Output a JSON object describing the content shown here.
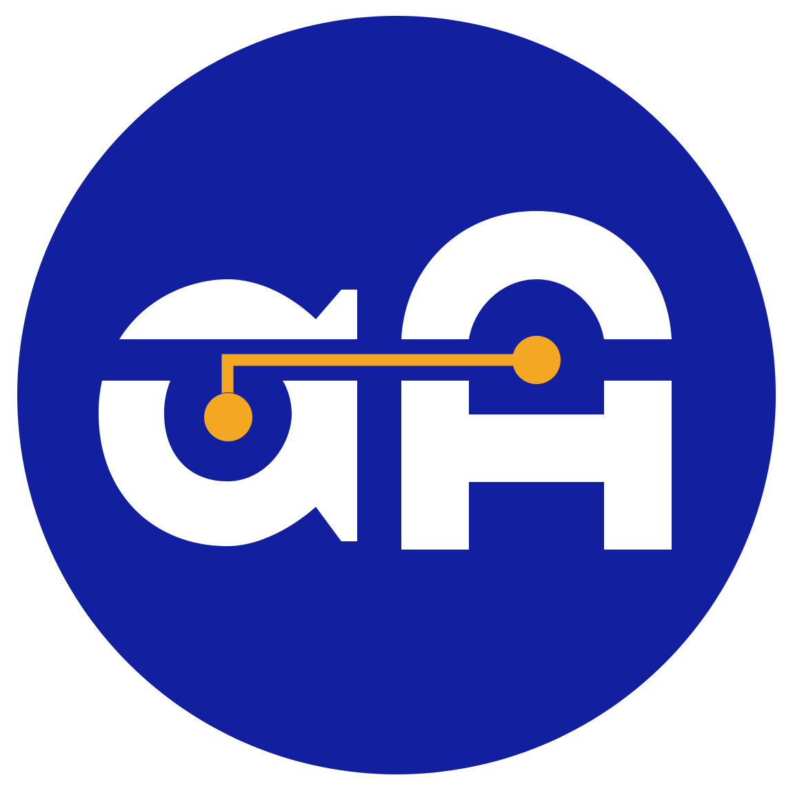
{
  "logo": {
    "monogram_letters": "aH",
    "colors": {
      "page_background": "#ffffff",
      "circle_background": "#1220a0",
      "letters": "#ffffff",
      "circuit_trace": "#f4a722"
    },
    "icons": [
      "logo-circle-icon",
      "letter-a-icon",
      "letter-h-icon",
      "circuit-trace-icon",
      "circuit-node-icon"
    ]
  }
}
